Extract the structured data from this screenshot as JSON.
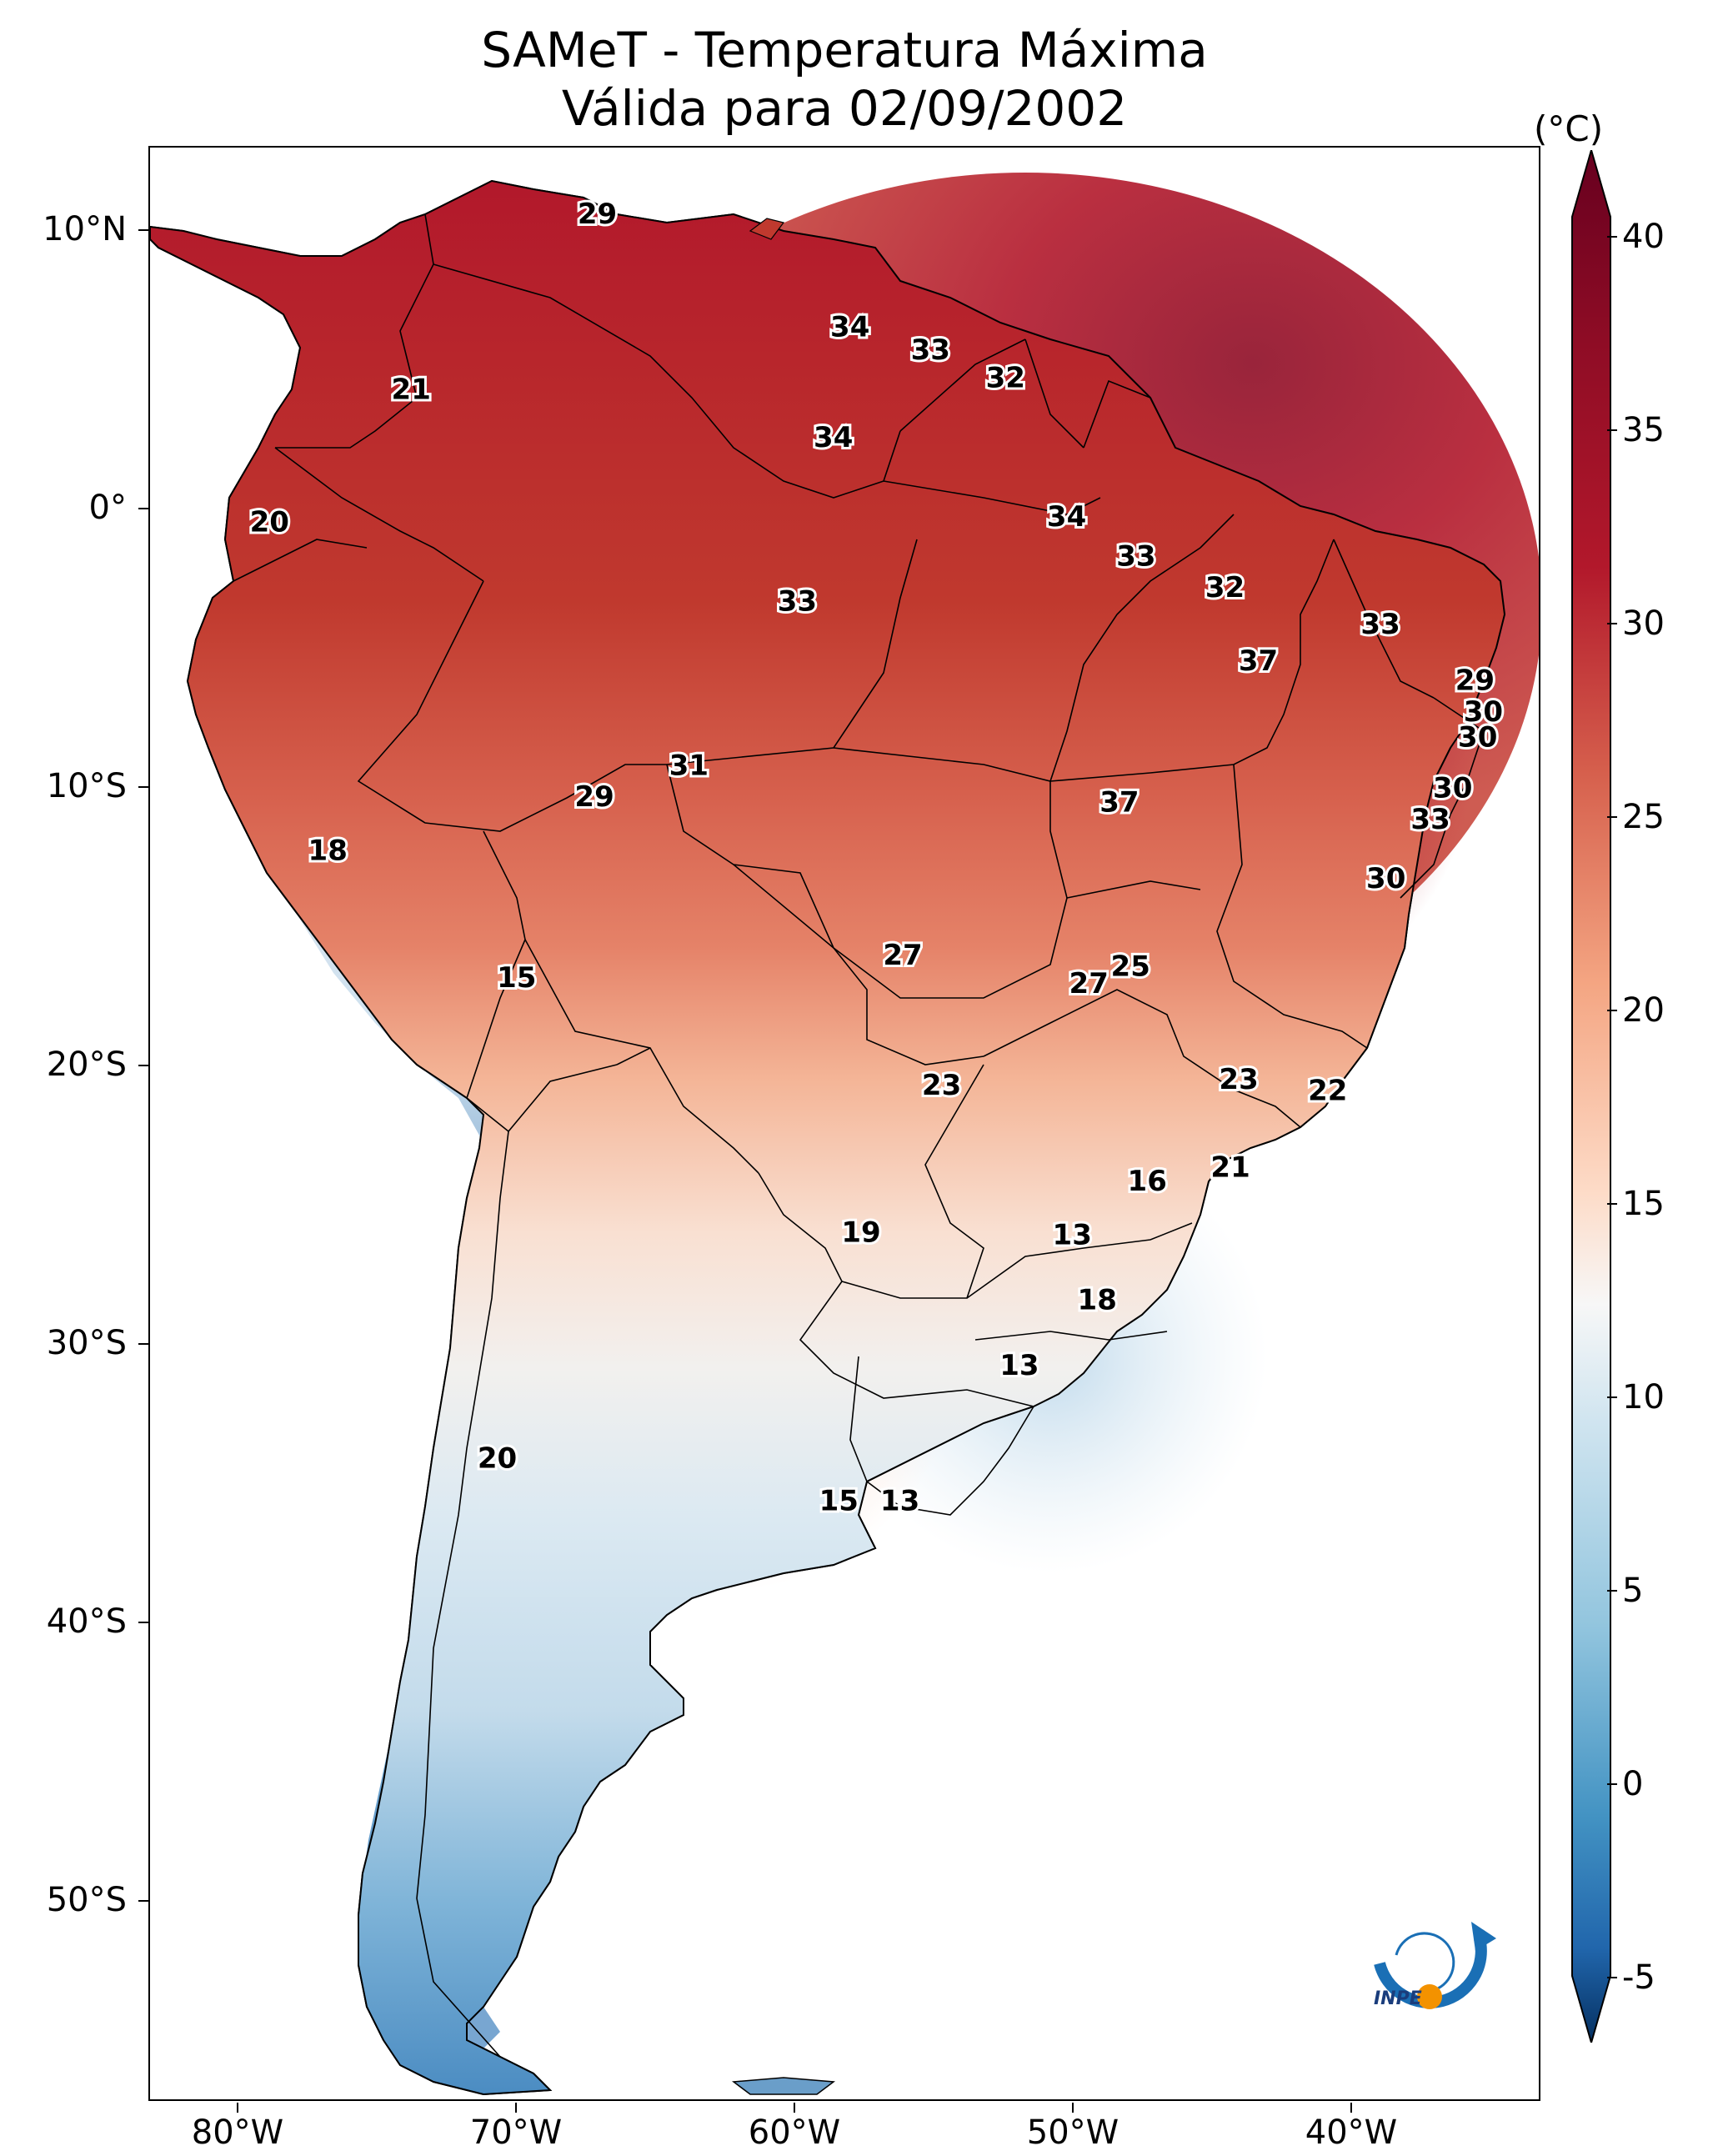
{
  "title": {
    "line1": "SAMeT - Temperatura Máxima",
    "line2": "Válida para 02/09/2002"
  },
  "colorbar": {
    "unit": "(°C)",
    "ticks": [
      "40",
      "35",
      "30",
      "25",
      "20",
      "15",
      "10",
      "5",
      "0",
      "-5"
    ],
    "colors": [
      "#67001f",
      "#b2182b",
      "#d6604d",
      "#f4a582",
      "#fddbc7",
      "#f7f7f7",
      "#d1e5f0",
      "#92c5de",
      "#4393c3",
      "#2166ac",
      "#053061"
    ]
  },
  "axes": {
    "lat_labels": [
      "10°N",
      "0°",
      "10°S",
      "20°S",
      "30°S",
      "40°S",
      "50°S"
    ],
    "lon_labels": [
      "80°W",
      "70°W",
      "60°W",
      "50°W",
      "40°W"
    ]
  },
  "chart_data": {
    "type": "heatmap",
    "title": "SAMeT - Temperatura Máxima Válida para 02/09/2002",
    "variable": "Temperatura Máxima",
    "unit": "°C",
    "date": "02/09/2002",
    "color_range": [
      -5,
      40
    ],
    "lat_range": [
      -56,
      13
    ],
    "lon_range": [
      -83,
      -33
    ],
    "contour_labels": [
      {
        "text": "29",
        "lon": -66.9,
        "lat": 10.6
      },
      {
        "text": "21",
        "lon": -73.6,
        "lat": 4.4
      },
      {
        "text": "34",
        "lon": -57.8,
        "lat": 6.6
      },
      {
        "text": "33",
        "lon": -54.9,
        "lat": 5.8
      },
      {
        "text": "32",
        "lon": -52.2,
        "lat": 4.8
      },
      {
        "text": "34",
        "lon": -58.4,
        "lat": 2.7
      },
      {
        "text": "20",
        "lon": -78.7,
        "lat": -0.3
      },
      {
        "text": "34",
        "lon": -50.0,
        "lat": -0.1
      },
      {
        "text": "33",
        "lon": -47.5,
        "lat": -1.5
      },
      {
        "text": "32",
        "lon": -44.3,
        "lat": -2.6
      },
      {
        "text": "33",
        "lon": -59.7,
        "lat": -3.1
      },
      {
        "text": "33",
        "lon": -38.7,
        "lat": -3.9
      },
      {
        "text": "37",
        "lon": -43.1,
        "lat": -5.2
      },
      {
        "text": "29",
        "lon": -35.3,
        "lat": -5.9
      },
      {
        "text": "30",
        "lon": -35.0,
        "lat": -7.0
      },
      {
        "text": "30",
        "lon": -35.2,
        "lat": -7.9
      },
      {
        "text": "31",
        "lon": -63.6,
        "lat": -8.9
      },
      {
        "text": "29",
        "lon": -67.0,
        "lat": -10.0
      },
      {
        "text": "37",
        "lon": -48.1,
        "lat": -10.2
      },
      {
        "text": "30",
        "lon": -36.1,
        "lat": -9.7
      },
      {
        "text": "33",
        "lon": -36.9,
        "lat": -10.8
      },
      {
        "text": "18",
        "lon": -76.6,
        "lat": -11.9
      },
      {
        "text": "30",
        "lon": -38.5,
        "lat": -12.9
      },
      {
        "text": "27",
        "lon": -55.9,
        "lat": -15.6
      },
      {
        "text": "25",
        "lon": -47.7,
        "lat": -16.0
      },
      {
        "text": "27",
        "lon": -49.2,
        "lat": -16.6
      },
      {
        "text": "15",
        "lon": -69.8,
        "lat": -16.4
      },
      {
        "text": "23",
        "lon": -54.5,
        "lat": -20.2
      },
      {
        "text": "23",
        "lon": -43.8,
        "lat": -20.0
      },
      {
        "text": "22",
        "lon": -40.6,
        "lat": -20.4
      },
      {
        "text": "21",
        "lon": -44.1,
        "lat": -23.1
      },
      {
        "text": "16",
        "lon": -47.1,
        "lat": -23.6
      },
      {
        "text": "19",
        "lon": -57.4,
        "lat": -25.4
      },
      {
        "text": "13",
        "lon": -49.8,
        "lat": -25.5
      },
      {
        "text": "18",
        "lon": -48.9,
        "lat": -27.8
      },
      {
        "text": "13",
        "lon": -51.7,
        "lat": -30.1
      },
      {
        "text": "20",
        "lon": -70.5,
        "lat": -33.4
      },
      {
        "text": "15",
        "lon": -58.2,
        "lat": -34.9
      },
      {
        "text": "13",
        "lon": -56.0,
        "lat": -34.9
      }
    ]
  },
  "logo": {
    "text": "INPE"
  }
}
